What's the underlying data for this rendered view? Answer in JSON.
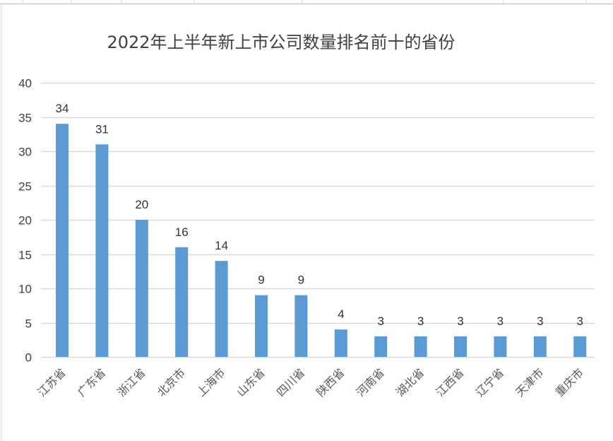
{
  "chart_data": {
    "type": "bar",
    "title": "2022年上半年新上市公司数量排名前十的省份",
    "xlabel": "",
    "ylabel": "",
    "ylim": [
      0,
      40
    ],
    "yticks": [
      0,
      5,
      10,
      15,
      20,
      25,
      30,
      35,
      40
    ],
    "grid": true,
    "legend": "none",
    "categories": [
      "江苏省",
      "广东省",
      "浙江省",
      "北京市",
      "上海市",
      "山东省",
      "四川省",
      "陕西省",
      "河南省",
      "湖北省",
      "江西省",
      "辽宁省",
      "天津市",
      "重庆市"
    ],
    "values": [
      34,
      31,
      20,
      16,
      14,
      9,
      9,
      4,
      3,
      3,
      3,
      3,
      3,
      3
    ],
    "bar_color": "#5b9bd5",
    "grid_color": "#d9d9d9"
  }
}
